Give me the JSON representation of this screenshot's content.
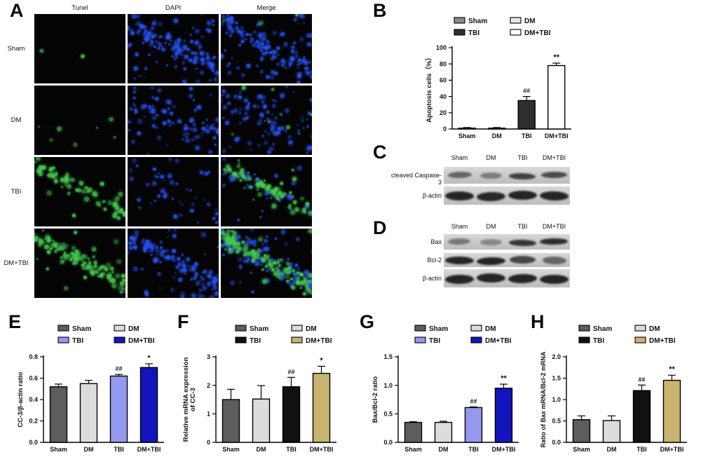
{
  "figure_background": "#ffffff",
  "panels": {
    "A": {
      "label": "A",
      "column_headers": [
        "Tunel",
        "DAPI",
        "Merge"
      ],
      "rows": [
        {
          "label": "Sham",
          "cells": [
            {
              "channel": "tunel",
              "green": 0.015,
              "blue": 0,
              "spread": 0.4
            },
            {
              "channel": "dapi",
              "green": 0,
              "blue": 0.95,
              "spread": 0.5
            },
            {
              "channel": "merge",
              "green": 0.02,
              "blue": 0.95,
              "spread": 0.5
            }
          ]
        },
        {
          "label": "DM",
          "cells": [
            {
              "channel": "tunel",
              "green": 0.05,
              "blue": 0,
              "spread": 0.9
            },
            {
              "channel": "dapi",
              "green": 0,
              "blue": 0.62,
              "spread": 0.85
            },
            {
              "channel": "merge",
              "green": 0.05,
              "blue": 0.62,
              "spread": 0.85
            }
          ]
        },
        {
          "label": "TBI",
          "cells": [
            {
              "channel": "tunel",
              "green": 0.55,
              "blue": 0,
              "spread": 0.22
            },
            {
              "channel": "dapi",
              "green": 0,
              "blue": 0.32,
              "spread": 0.95
            },
            {
              "channel": "merge",
              "green": 0.55,
              "blue": 0.32,
              "spread": 0.5
            }
          ]
        },
        {
          "label": "DM+TBI",
          "cells": [
            {
              "channel": "tunel",
              "green": 0.95,
              "blue": 0,
              "spread": 0.3
            },
            {
              "channel": "dapi",
              "green": 0,
              "blue": 0.9,
              "spread": 0.42
            },
            {
              "channel": "merge",
              "green": 0.95,
              "blue": 0.9,
              "spread": 0.38
            }
          ]
        }
      ]
    },
    "B": {
      "label": "B",
      "chart_id": "B"
    },
    "C": {
      "label": "C",
      "lane_headers": [
        "Sham",
        "DM",
        "TBI",
        "DM+TBI"
      ],
      "rows": [
        {
          "label": "cleaved Caspase-3",
          "bands": [
            0.55,
            0.4,
            0.78,
            0.72
          ],
          "band_h": 9
        },
        {
          "label": "β-actin",
          "bands": [
            0.95,
            0.92,
            0.95,
            0.95
          ],
          "band_h": 13
        }
      ]
    },
    "D": {
      "label": "D",
      "lane_headers": [
        "Sham",
        "DM",
        "TBI",
        "DM+TBI"
      ],
      "rows": [
        {
          "label": "Bax",
          "bands": [
            0.45,
            0.35,
            0.85,
            0.9
          ],
          "band_h": 9
        },
        {
          "label": "Bcl-2",
          "bands": [
            0.95,
            0.95,
            0.75,
            0.55
          ],
          "band_h": 11
        },
        {
          "label": "β-actin",
          "bands": [
            0.95,
            0.95,
            0.95,
            0.95
          ],
          "band_h": 13
        }
      ]
    },
    "E": {
      "label": "E",
      "chart_id": "E"
    },
    "F": {
      "label": "F",
      "chart_id": "F"
    },
    "G": {
      "label": "G",
      "chart_id": "G"
    },
    "H": {
      "label": "H",
      "chart_id": "H"
    }
  },
  "chart_data": [
    {
      "id": "B",
      "type": "bar",
      "categories": [
        "Sham",
        "DM",
        "TBI",
        "DM+TBI"
      ],
      "values": [
        1,
        1,
        35,
        78
      ],
      "errors": [
        0.8,
        0.8,
        5,
        3
      ],
      "annotations": [
        "",
        "",
        "##",
        "**"
      ],
      "bar_colors": [
        "#8a8a8a",
        "#e6e6e6",
        "#2f2f2f",
        "#ffffff"
      ],
      "ylabel_lines": [
        "Apoptosis cells（%）"
      ],
      "ylim": [
        0,
        100
      ],
      "yticks": [
        0,
        20,
        40,
        60,
        80,
        100
      ],
      "ytick_labels": [
        "0",
        "20",
        "40",
        "60",
        "80",
        "100"
      ],
      "legend": [
        "Sham",
        "DM",
        "TBI",
        "DM+TBI"
      ],
      "legend_position": "top",
      "grid": false
    },
    {
      "id": "E",
      "type": "bar",
      "categories": [
        "Sham",
        "DM",
        "TBI",
        "DM+TBI"
      ],
      "values": [
        0.52,
        0.55,
        0.62,
        0.7
      ],
      "errors": [
        0.025,
        0.03,
        0.015,
        0.035
      ],
      "annotations": [
        "",
        "",
        "##",
        "*"
      ],
      "bar_colors": [
        "#5d5d5d",
        "#dcdcdc",
        "#9599ed",
        "#1414bd"
      ],
      "ylabel_lines": [
        "CC-3/β-actin ratio"
      ],
      "ylim": [
        0,
        0.8
      ],
      "yticks": [
        0,
        0.2,
        0.4,
        0.6,
        0.8
      ],
      "ytick_labels": [
        "0.0",
        "0.2",
        "0.4",
        "0.6",
        "0.8"
      ],
      "legend": [
        "Sham",
        "DM",
        "TBI",
        "DM+TBI"
      ],
      "legend_position": "top",
      "grid": false
    },
    {
      "id": "F",
      "type": "bar",
      "categories": [
        "Sham",
        "DM",
        "TBI",
        "DM+TBI"
      ],
      "values": [
        1.5,
        1.52,
        1.95,
        2.42
      ],
      "errors": [
        0.36,
        0.47,
        0.33,
        0.25
      ],
      "annotations": [
        "",
        "",
        "##",
        "*"
      ],
      "bar_colors": [
        "#5d5d5d",
        "#dcdcdc",
        "#111111",
        "#c7b46e"
      ],
      "ylabel_lines": [
        "Relative mRNA expression",
        "of CC-3"
      ],
      "ylim": [
        0,
        3
      ],
      "yticks": [
        0,
        1,
        2,
        3
      ],
      "ytick_labels": [
        "0",
        "1",
        "2",
        "3"
      ],
      "legend": [
        "Sham",
        "DM",
        "TBI",
        "DM+TBI"
      ],
      "legend_position": "top",
      "grid": false
    },
    {
      "id": "G",
      "type": "bar",
      "categories": [
        "Sham",
        "DM",
        "TBI",
        "DM+TBI"
      ],
      "values": [
        0.35,
        0.35,
        0.61,
        0.95
      ],
      "errors": [
        0.012,
        0.02,
        0.012,
        0.07
      ],
      "annotations": [
        "",
        "",
        "##",
        "**"
      ],
      "bar_colors": [
        "#5d5d5d",
        "#dcdcdc",
        "#9599ed",
        "#1414bd"
      ],
      "ylabel_lines": [
        "Bax/Bcl-2 ratio"
      ],
      "ylim": [
        0,
        1.5
      ],
      "yticks": [
        0,
        0.5,
        1,
        1.5
      ],
      "ytick_labels": [
        "0.0",
        "0.5",
        "1.0",
        "1.5"
      ],
      "legend": [
        "Sham",
        "DM",
        "TBI",
        "DM+TBI"
      ],
      "legend_position": "top",
      "grid": false
    },
    {
      "id": "H",
      "type": "bar",
      "categories": [
        "Sham",
        "DM",
        "TBI",
        "DM+TBI"
      ],
      "values": [
        0.53,
        0.51,
        1.21,
        1.45
      ],
      "errors": [
        0.09,
        0.11,
        0.13,
        0.12
      ],
      "annotations": [
        "",
        "",
        "##",
        "**"
      ],
      "bar_colors": [
        "#5d5d5d",
        "#dcdcdc",
        "#111111",
        "#c7b46e"
      ],
      "ylabel_lines": [
        "Ratio of Bax mRNA/Bcl-2 mRNA"
      ],
      "ylim": [
        0,
        2
      ],
      "yticks": [
        0,
        0.5,
        1,
        1.5,
        2
      ],
      "ytick_labels": [
        "0.0",
        "0.5",
        "1.0",
        "1.5",
        "2.0"
      ],
      "legend": [
        "Sham",
        "DM",
        "TBI",
        "DM+TBI"
      ],
      "legend_position": "top",
      "grid": false
    }
  ]
}
